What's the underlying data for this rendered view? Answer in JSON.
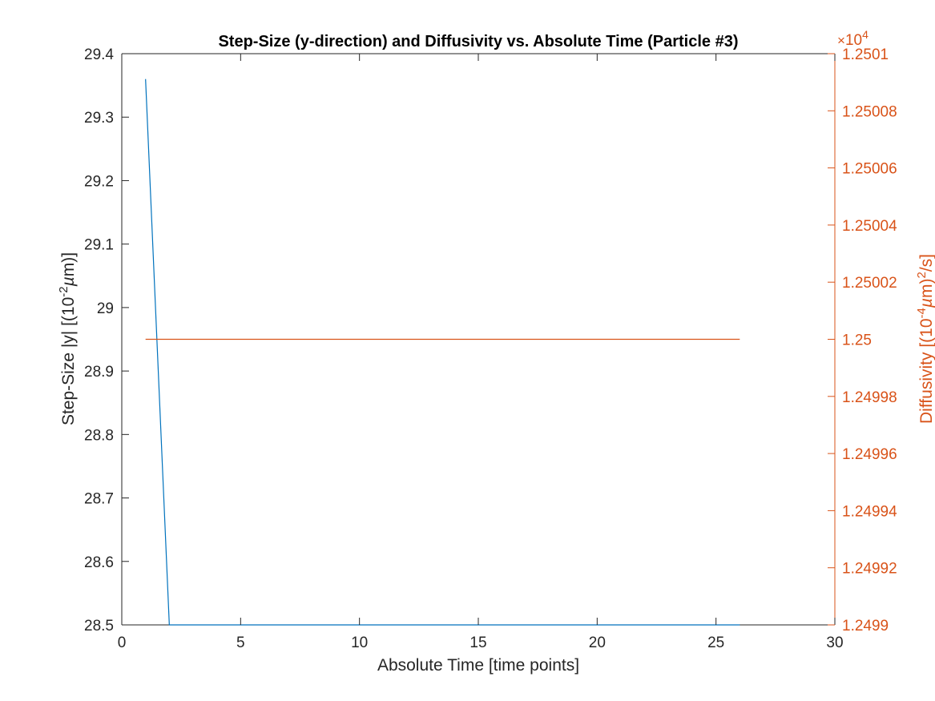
{
  "chart_data": {
    "type": "line",
    "title": "Step-Size (y-direction) and Diffusivity vs. Absolute Time (Particle #3)",
    "xlabel": "Absolute Time [time points]",
    "ylabel_left": "Step-Size |y| [(10^-2 µm)]",
    "ylabel_left_parts": {
      "pre": "Step-Size |y| [(10",
      "sup": "-2",
      "mu": "µ",
      "post": "m)]"
    },
    "ylabel_right": "Diffusivity [(10^-4 µm)^2/s]",
    "ylabel_right_parts": {
      "pre": "Diffusivity [(10",
      "sup": "-4",
      "mu": "µ",
      "mid": "m)",
      "sup2": "2",
      "post": "/s]"
    },
    "xlim": [
      0,
      30
    ],
    "ylim_left": [
      28.5,
      29.4
    ],
    "ylim_right": [
      1.2499,
      1.2501
    ],
    "right_exponent": {
      "base": "10",
      "power": "4",
      "prefix": "×"
    },
    "x_ticks": [
      "0",
      "5",
      "10",
      "15",
      "20",
      "25",
      "30"
    ],
    "y_left_ticks": [
      "28.5",
      "28.6",
      "28.7",
      "28.8",
      "28.9",
      "29",
      "29.1",
      "29.2",
      "29.3",
      "29.4"
    ],
    "y_right_ticks": [
      "1.2499",
      "1.24992",
      "1.24994",
      "1.24996",
      "1.24998",
      "1.25",
      "1.25002",
      "1.25004",
      "1.25006",
      "1.25008",
      "1.2501"
    ],
    "grid": false,
    "series": [
      {
        "axis": "left",
        "color": "#0072BD",
        "x": [
          1,
          2,
          3,
          4,
          5,
          6,
          7,
          8,
          9,
          10,
          11,
          12,
          13,
          14,
          15,
          16,
          17,
          18,
          19,
          20,
          21,
          22,
          23,
          24,
          25,
          26
        ],
        "values": [
          29.36,
          28.5,
          28.5,
          28.5,
          28.5,
          28.5,
          28.5,
          28.5,
          28.5,
          28.5,
          28.5,
          28.5,
          28.5,
          28.5,
          28.5,
          28.5,
          28.5,
          28.5,
          28.5,
          28.5,
          28.5,
          28.5,
          28.5,
          28.5,
          28.5,
          28.5
        ]
      },
      {
        "axis": "right",
        "color": "#D95319",
        "x": [
          1,
          2,
          3,
          4,
          5,
          6,
          7,
          8,
          9,
          10,
          11,
          12,
          13,
          14,
          15,
          16,
          17,
          18,
          19,
          20,
          21,
          22,
          23,
          24,
          25,
          26
        ],
        "values": [
          1.25,
          1.25,
          1.25,
          1.25,
          1.25,
          1.25,
          1.25,
          1.25,
          1.25,
          1.25,
          1.25,
          1.25,
          1.25,
          1.25,
          1.25,
          1.25,
          1.25,
          1.25,
          1.25,
          1.25,
          1.25,
          1.25,
          1.25,
          1.25,
          1.25,
          1.25
        ]
      }
    ],
    "colors": {
      "left_axis": "#262626",
      "right_axis": "#D95319",
      "box": "#262626"
    }
  }
}
